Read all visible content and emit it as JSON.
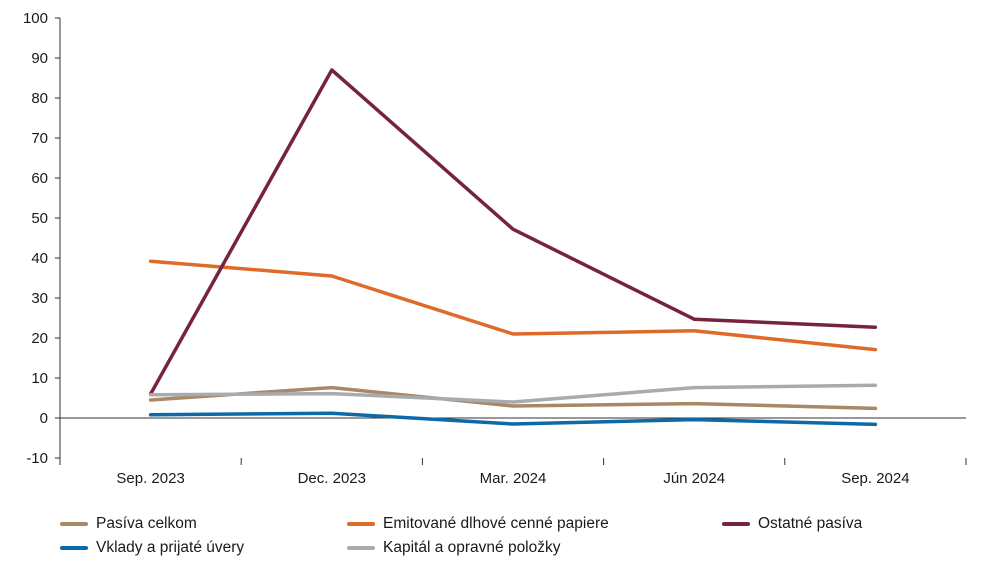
{
  "chart_data": {
    "type": "line",
    "categories": [
      "Sep. 2023",
      "Dec. 2023",
      "Mar. 2024",
      "Jún 2024",
      "Sep. 2024"
    ],
    "ylim": [
      -10,
      100
    ],
    "yticks": [
      -10,
      0,
      10,
      20,
      30,
      40,
      50,
      60,
      70,
      80,
      90,
      100
    ],
    "grid": false,
    "legend_position": "bottom",
    "series": [
      {
        "name": "Pasíva celkom",
        "color": "#a88865",
        "values": [
          4.5,
          7.6,
          3.0,
          3.6,
          2.4
        ]
      },
      {
        "name": "Emitované dlhové cenné papiere",
        "color": "#e06a2a",
        "values": [
          39.2,
          35.5,
          21.0,
          21.8,
          17.1
        ]
      },
      {
        "name": "Ostatné pasíva",
        "color": "#76233f",
        "values": [
          6.0,
          87.0,
          47.2,
          24.7,
          22.7
        ]
      },
      {
        "name": "Vklady a prijaté úvery",
        "color": "#0d6aa8",
        "values": [
          0.8,
          1.2,
          -1.5,
          -0.4,
          -1.6
        ]
      },
      {
        "name": "Kapitál a opravné položky",
        "color": "#a6abb0",
        "values": [
          5.8,
          6.1,
          4.0,
          7.6,
          8.2
        ]
      }
    ]
  }
}
